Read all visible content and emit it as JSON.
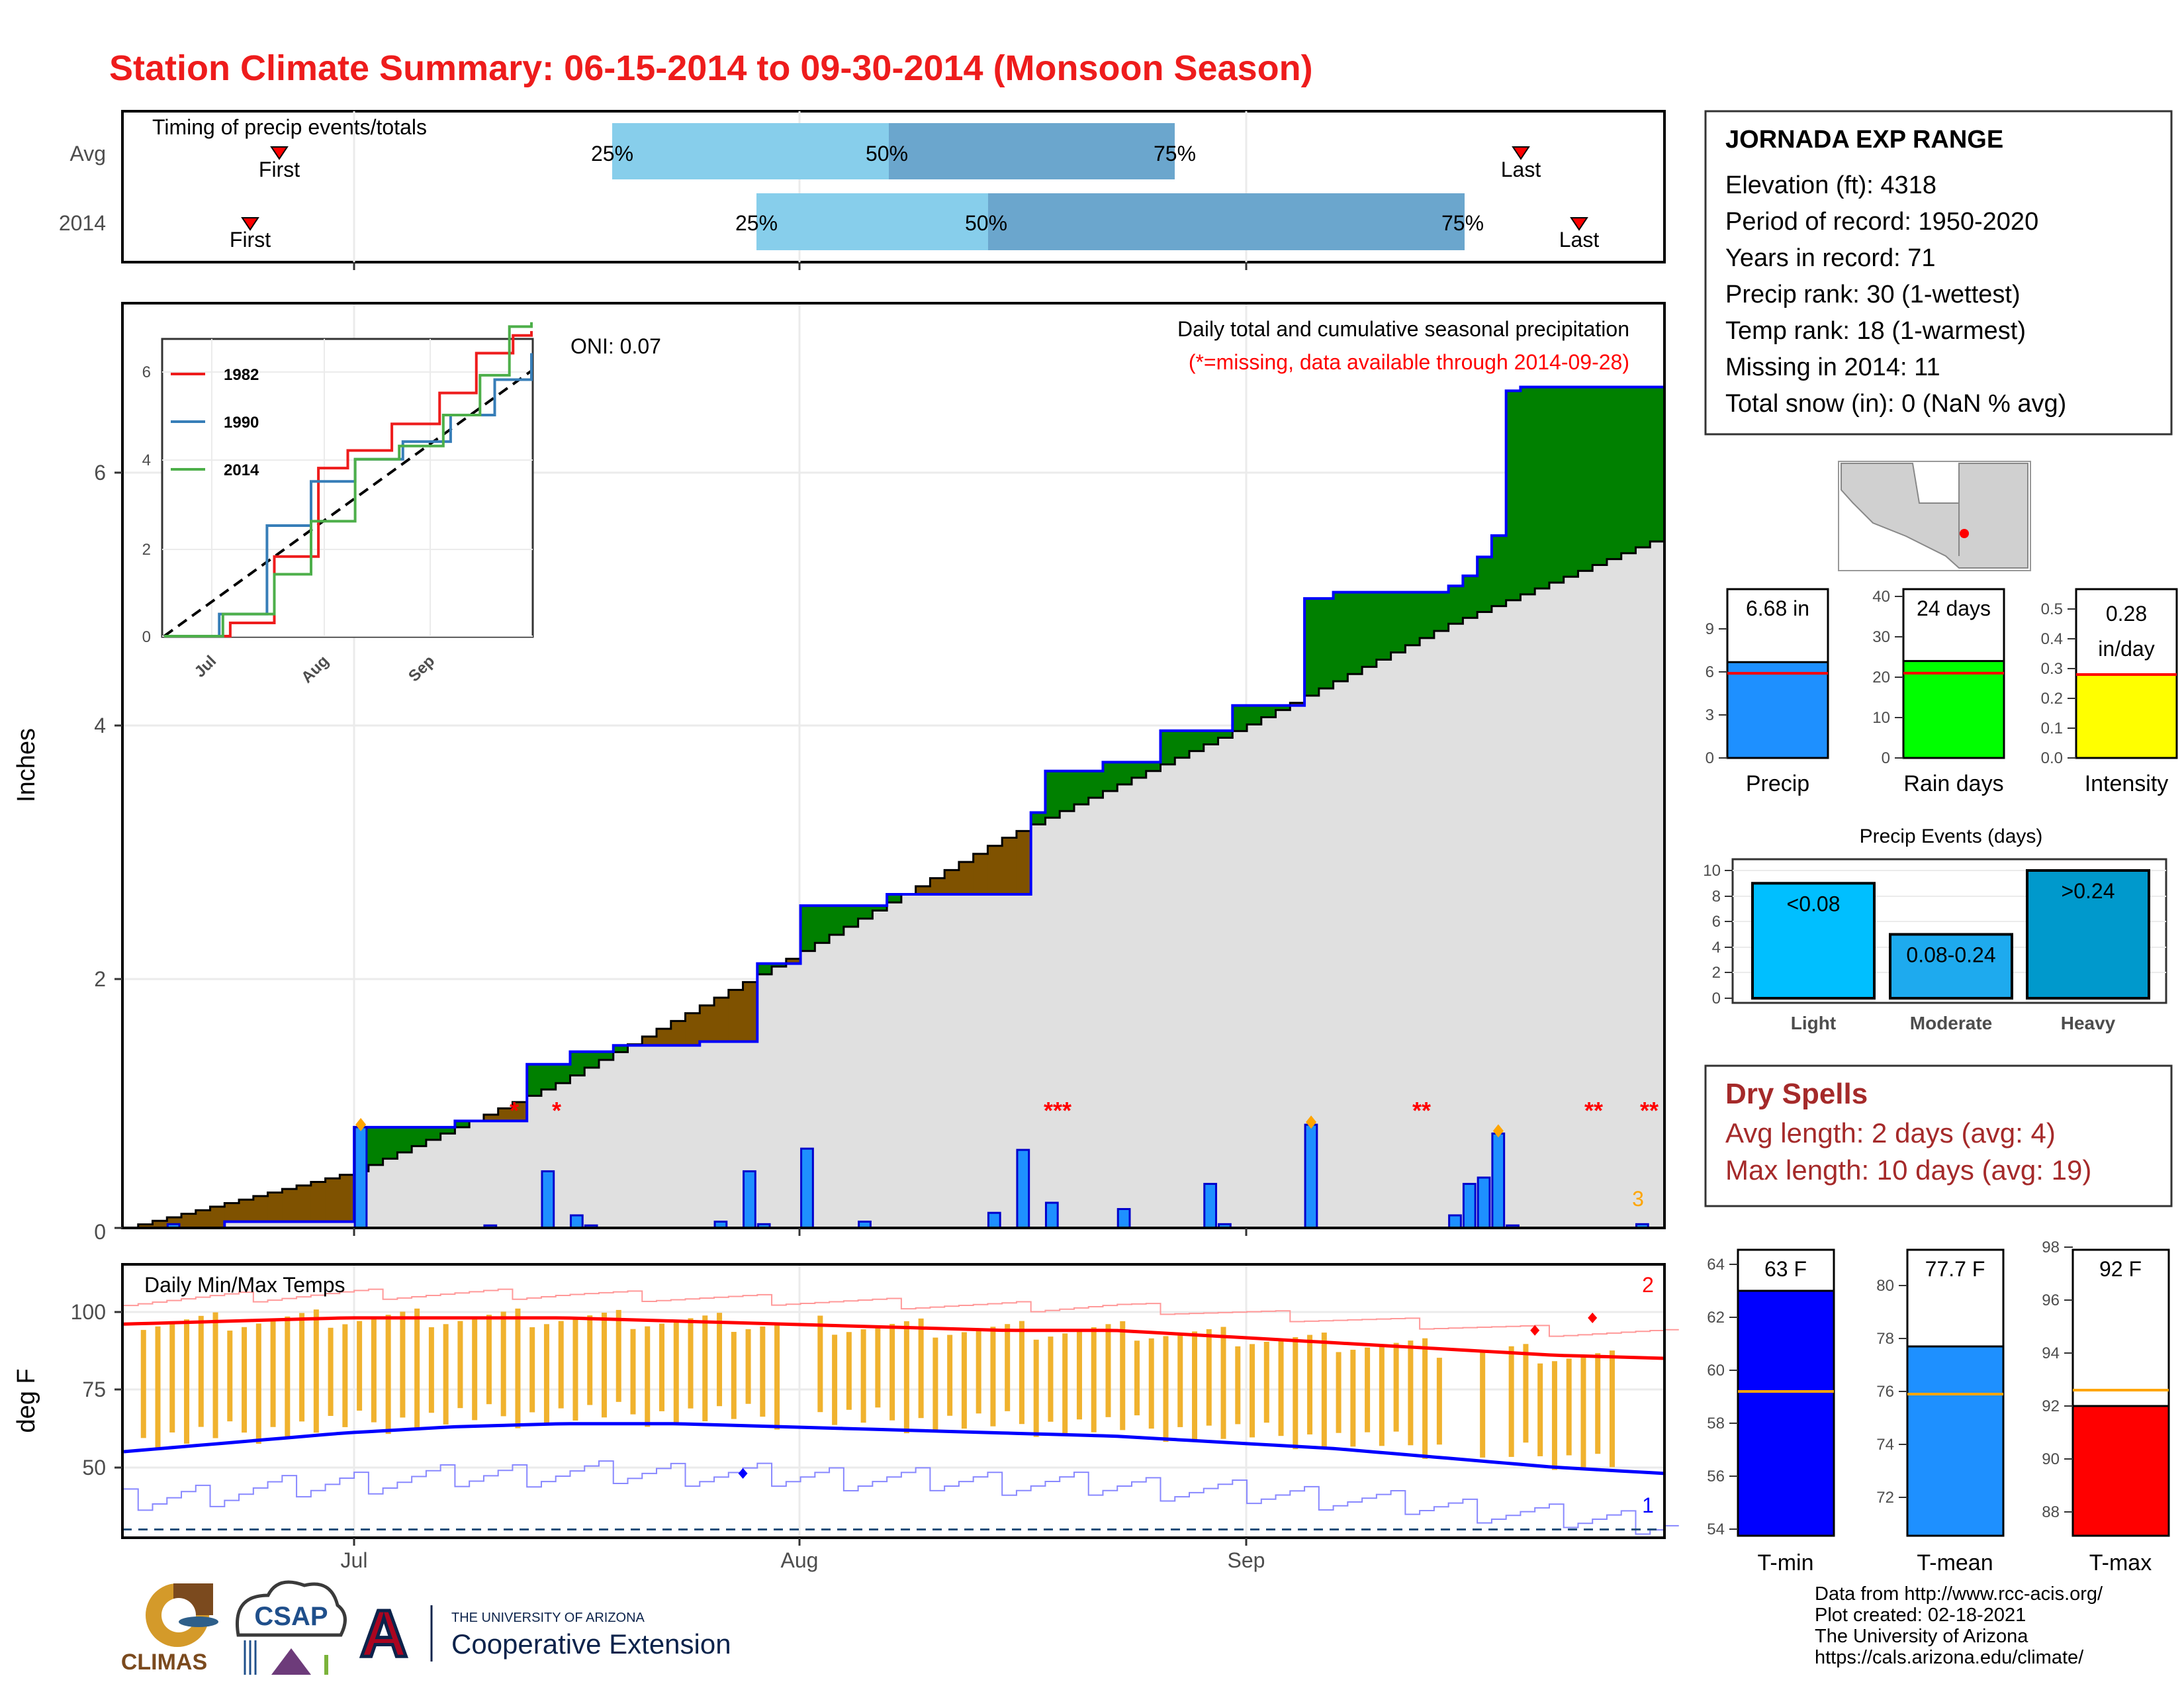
{
  "title": "Station Climate Summary: 06-15-2014 to 09-30-2014 (Monsoon Season)",
  "timing": {
    "label": "Timing of precip events/totals",
    "rows": [
      "Avg",
      "2014"
    ],
    "first_label": "First",
    "last_label": "Last",
    "pct_labels": [
      "25%",
      "50%",
      "75%"
    ]
  },
  "main": {
    "ylabel": "Inches",
    "yticks": [
      "0",
      "2",
      "4",
      "6"
    ],
    "xticks": [
      "Jul",
      "Aug",
      "Sep"
    ],
    "oni": "ONI: 0.07",
    "note_title": "Daily total and cumulative seasonal precipitation",
    "note_missing": "(*=missing, data available through 2014-09-28)",
    "missing_marks": [
      "*",
      "*",
      "***",
      "**",
      "**",
      "**"
    ],
    "big_event_count": "3"
  },
  "inset": {
    "yticks": [
      "0",
      "2",
      "4",
      "6"
    ],
    "xticks": [
      "Jul",
      "Aug",
      "Sep"
    ],
    "legend": [
      "1982",
      "1990",
      "2014"
    ]
  },
  "temps": {
    "label": "Daily Min/Max Temps",
    "ylabel": "deg F",
    "yticks": [
      "50",
      "75",
      "100"
    ],
    "record_high_count": "2",
    "record_low_count": "1"
  },
  "station": {
    "name": "JORNADA EXP RANGE",
    "lines": [
      "Elevation (ft): 4318",
      "Period of record: 1950-2020",
      "Years in record: 71",
      "Precip rank: 30 (1-wettest)",
      "Temp rank: 18 (1-warmest)",
      "Missing in 2014: 11",
      "Total snow (in): 0 (NaN % avg)"
    ]
  },
  "mini_bars": {
    "precip": {
      "label": "Precip",
      "value_text": "6.68 in",
      "yticks": [
        "0",
        "3",
        "6",
        "9"
      ]
    },
    "raindays": {
      "label": "Rain days",
      "value_text": "24 days",
      "yticks": [
        "0",
        "10",
        "20",
        "30",
        "40"
      ]
    },
    "intensity": {
      "label": "Intensity",
      "value_text": "0.28",
      "value_unit": "in/day",
      "yticks": [
        "0.0",
        "0.1",
        "0.2",
        "0.3",
        "0.4",
        "0.5"
      ]
    }
  },
  "events": {
    "title": "Precip Events (days)",
    "yticks": [
      "0",
      "2",
      "4",
      "6",
      "8",
      "10"
    ]
  },
  "dry_spells": {
    "title": "Dry Spells",
    "avg": "Avg length: 2 days (avg: 4)",
    "max": "Max length: 10 days (avg: 19)"
  },
  "temp_bars": {
    "tmin": {
      "label": "T-min",
      "value_text": "63 F",
      "yticks": [
        "54",
        "56",
        "58",
        "60",
        "62",
        "64"
      ]
    },
    "tmean": {
      "label": "T-mean",
      "value_text": "77.7 F",
      "yticks": [
        "72",
        "74",
        "76",
        "78",
        "80"
      ]
    },
    "tmax": {
      "label": "T-max",
      "value_text": "92 F",
      "yticks": [
        "88",
        "90",
        "92",
        "94",
        "96",
        "98"
      ]
    }
  },
  "credits": [
    "Data from http://www.rcc-acis.org/",
    "Plot created: 02-18-2021",
    "The University of Arizona",
    "https://cals.arizona.edu/climate/"
  ],
  "logos": {
    "climas": "CLIMAS",
    "csap": "CSAP",
    "ua_small": "THE UNIVERSITY OF ARIZONA",
    "ua_big": "Cooperative Extension",
    "ua_letter": "A"
  },
  "colors": {
    "title": "#ee1c1c",
    "surplus": "#008000",
    "deficit": "#7f5200",
    "normal_fill": "#e0e0e0",
    "daily_bar": "#1e90ff",
    "precip_bar": "#1e90ff",
    "raindays_bar": "#00ff00",
    "intensity_bar": "#ffff00",
    "tmin_bar": "#0000ff",
    "tmean_bar": "#1e90ff",
    "tmax_bar": "#ff0000",
    "dry_spell": "#a52a2a"
  },
  "chart_data": [
    {
      "type": "area",
      "name": "cumulative precipitation",
      "x_start": "2014-06-15",
      "x_end": "2014-09-30",
      "ylim": [
        0,
        7.2
      ],
      "series": [
        {
          "name": "2014 cumulative",
          "x": [
            "2014-06-15",
            "2014-06-22",
            "2014-07-01",
            "2014-07-08",
            "2014-07-13",
            "2014-07-16",
            "2014-07-19",
            "2014-07-25",
            "2014-07-29",
            "2014-08-01",
            "2014-08-07",
            "2014-08-17",
            "2014-08-18",
            "2014-08-22",
            "2014-08-26",
            "2014-08-31",
            "2014-09-05",
            "2014-09-07",
            "2014-09-15",
            "2014-09-16",
            "2014-09-17",
            "2014-09-18",
            "2014-09-19",
            "2014-09-20",
            "2014-09-24",
            "2014-09-30"
          ],
          "values": [
            0,
            0.05,
            0.8,
            0.85,
            1.3,
            1.4,
            1.45,
            1.48,
            2.1,
            2.56,
            2.65,
            3.3,
            3.63,
            3.7,
            3.95,
            4.15,
            5.0,
            5.05,
            5.1,
            5.18,
            5.33,
            5.5,
            6.65,
            6.68,
            6.68,
            6.68
          ]
        },
        {
          "name": "average cumulative",
          "x": [
            "2014-06-15",
            "2014-07-01",
            "2014-07-15",
            "2014-08-01",
            "2014-08-15",
            "2014-09-01",
            "2014-09-15",
            "2014-09-30"
          ],
          "values": [
            0,
            0.45,
            1.15,
            2.2,
            3.1,
            4.0,
            4.8,
            5.5
          ]
        }
      ]
    },
    {
      "type": "bar",
      "name": "daily precipitation",
      "x": [
        "06-18",
        "07-01",
        "07-10",
        "07-14",
        "07-16",
        "07-17",
        "07-26",
        "07-28",
        "07-29",
        "08-01",
        "08-05",
        "08-14",
        "08-16",
        "08-18",
        "08-23",
        "08-29",
        "08-30",
        "09-05",
        "09-15",
        "09-16",
        "09-17",
        "09-18",
        "09-19",
        "09-28"
      ],
      "values": [
        0.03,
        0.8,
        0.02,
        0.45,
        0.1,
        0.02,
        0.05,
        0.45,
        0.03,
        0.63,
        0.05,
        0.12,
        0.62,
        0.2,
        0.15,
        0.35,
        0.03,
        0.82,
        0.1,
        0.35,
        0.4,
        0.75,
        0.02,
        0.03
      ]
    },
    {
      "type": "line",
      "name": "inset cumulative by year",
      "ylim": [
        0,
        7
      ],
      "series": [
        {
          "name": "1982",
          "x": [
            0,
            0.18,
            0.3,
            0.42,
            0.5,
            0.62,
            0.75,
            0.85,
            0.95,
            1.0
          ],
          "values": [
            0,
            0.3,
            1.8,
            3.8,
            4.2,
            4.8,
            5.5,
            6.4,
            6.8,
            6.9
          ]
        },
        {
          "name": "1990",
          "x": [
            0,
            0.15,
            0.28,
            0.4,
            0.52,
            0.65,
            0.78,
            0.9,
            1.0
          ],
          "values": [
            0,
            0.5,
            2.5,
            3.5,
            4.0,
            4.4,
            5.0,
            5.8,
            6.4
          ]
        },
        {
          "name": "2014",
          "x": [
            0,
            0.16,
            0.3,
            0.4,
            0.52,
            0.64,
            0.76,
            0.86,
            0.94,
            1.0
          ],
          "values": [
            0,
            0.5,
            1.4,
            2.6,
            4.0,
            4.3,
            5.0,
            5.9,
            7.0,
            7.1
          ]
        }
      ]
    },
    {
      "type": "bar",
      "name": "temperature",
      "ylim": [
        30,
        110
      ],
      "series": [
        {
          "name": "avg high",
          "values": [
            96,
            97,
            98,
            98,
            98,
            97,
            96,
            95,
            94,
            94,
            92,
            90,
            88,
            86,
            85
          ]
        },
        {
          "name": "avg low",
          "values": [
            55,
            58,
            61,
            63,
            64,
            64,
            63,
            62,
            61,
            60,
            58,
            56,
            53,
            50,
            48
          ]
        }
      ]
    },
    {
      "type": "bar",
      "name": "season totals",
      "categories": [
        "Precip",
        "Rain days",
        "Intensity",
        "T-min",
        "T-mean",
        "T-max"
      ],
      "values": [
        6.68,
        24,
        0.28,
        63,
        77.7,
        92
      ],
      "averages": [
        5.9,
        21,
        0.28,
        59.2,
        75.9,
        92.6
      ]
    },
    {
      "type": "bar",
      "name": "Precip Events (days)",
      "categories": [
        "Light",
        "Moderate",
        "Heavy"
      ],
      "range_labels": [
        "<0.08",
        "0.08-0.24",
        ">0.24"
      ],
      "values": [
        9,
        5,
        10
      ],
      "ylim": [
        0,
        10
      ]
    }
  ]
}
